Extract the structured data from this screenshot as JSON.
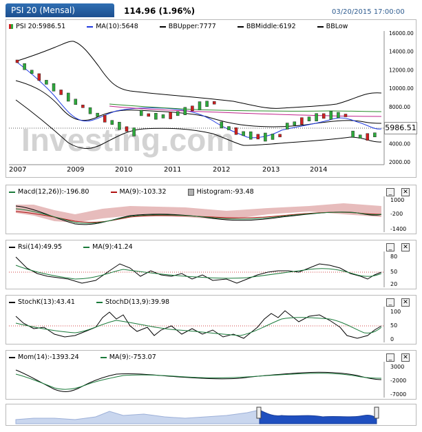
{
  "header": {
    "title": "PSI 20 (Mensal)",
    "price_change": "114.96 (1.96%)",
    "timestamp": "03/20/2015 17:00:00"
  },
  "main_chart": {
    "legend": [
      {
        "label": "PSI 20:5986.51",
        "color": "#000000"
      },
      {
        "label": "MA(10):5648",
        "color": "#1f3ae0"
      },
      {
        "label": "BBUpper:7777",
        "color": "#000000"
      },
      {
        "label": "BBMiddle:6192",
        "color": "#000000"
      },
      {
        "label": "BBLow",
        "color": "#000000"
      }
    ],
    "y_ticks": [
      "16000.00",
      "14000.00",
      "12000.00",
      "10000.00",
      "8000.00",
      "6000.00",
      "4000.00",
      "2000.00"
    ],
    "last_price_badge": "5986.51",
    "x_ticks": [
      "2007",
      "2009",
      "2010",
      "2011",
      "2012",
      "2013",
      "2014"
    ],
    "watermark": "Investing.com"
  },
  "macd_panel": {
    "legend": [
      {
        "label": "Macd(12,26)):-196.80",
        "color": "#1a7a3a"
      },
      {
        "label": "MA(9):-103.32",
        "color": "#b01010"
      },
      {
        "label": "Histogram:-93.48",
        "color": "#9a9a9a"
      }
    ],
    "y_ticks": [
      "1000",
      "-200",
      "-1400"
    ],
    "minimize": "_",
    "close": "✕"
  },
  "rsi_panel": {
    "legend": [
      {
        "label": "Rsi(14):49.95",
        "color": "#000000"
      },
      {
        "label": "MA(9):41.24",
        "color": "#1a7a3a"
      }
    ],
    "y_ticks": [
      "80",
      "50",
      "20"
    ],
    "minimize": "_",
    "close": "✕"
  },
  "stoch_panel": {
    "legend": [
      {
        "label": "StochK(13):43.41",
        "color": "#000000"
      },
      {
        "label": "StochD(13,9):39.98",
        "color": "#1a7a3a"
      }
    ],
    "y_ticks": [
      "100",
      "50",
      "0"
    ],
    "minimize": "_",
    "close": "✕"
  },
  "mom_panel": {
    "legend": [
      {
        "label": "Mom(14):-1393.24",
        "color": "#000000"
      },
      {
        "label": "MA(9):-753.07",
        "color": "#1a7a3a"
      }
    ],
    "y_ticks": [
      "3000",
      "-2000",
      "-7000"
    ],
    "minimize": "_",
    "close": "✕"
  },
  "colors": {
    "header_tab": "#1d4f8f",
    "timestamp": "#2d5b8f",
    "up_candle": "#2eaa3c",
    "down_candle": "#d02020",
    "navigator_fill": "#1f4fbf"
  }
}
